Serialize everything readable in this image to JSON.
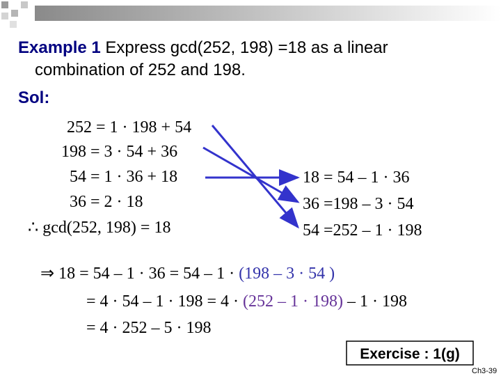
{
  "heading": {
    "label": "Example 1",
    "text1": " Express gcd(252, 198) =18 as a linear",
    "text2": "combination of 252 and 198."
  },
  "solution_label": "Sol:",
  "euclid": [
    "252 = 1 · 198 + 54",
    "198 = 3 · 54 + 36",
    "54 = 1 · 36 + 18",
    "36 = 2 · 18",
    "∴ gcd(252, 198) = 18"
  ],
  "remainders": [
    "18 = 54 – 1 · 36",
    "36 =198 – 3 · 54",
    "54 =252 – 1 · 198"
  ],
  "derivation": {
    "line1": [
      "⇒  18 = 54 – 1 · 36  = 54 – 1 · ",
      "(198 – 3 · 54 )"
    ],
    "line2": [
      "= 4 · 54 – 1 · 198 = 4 · ",
      "(252 – 1 · 198)",
      " – 1 · 198"
    ],
    "line3": "= 4 · 252 – 5 · 198"
  },
  "exercise": "Exercise : 1(g)",
  "footer": "Ch3-39"
}
